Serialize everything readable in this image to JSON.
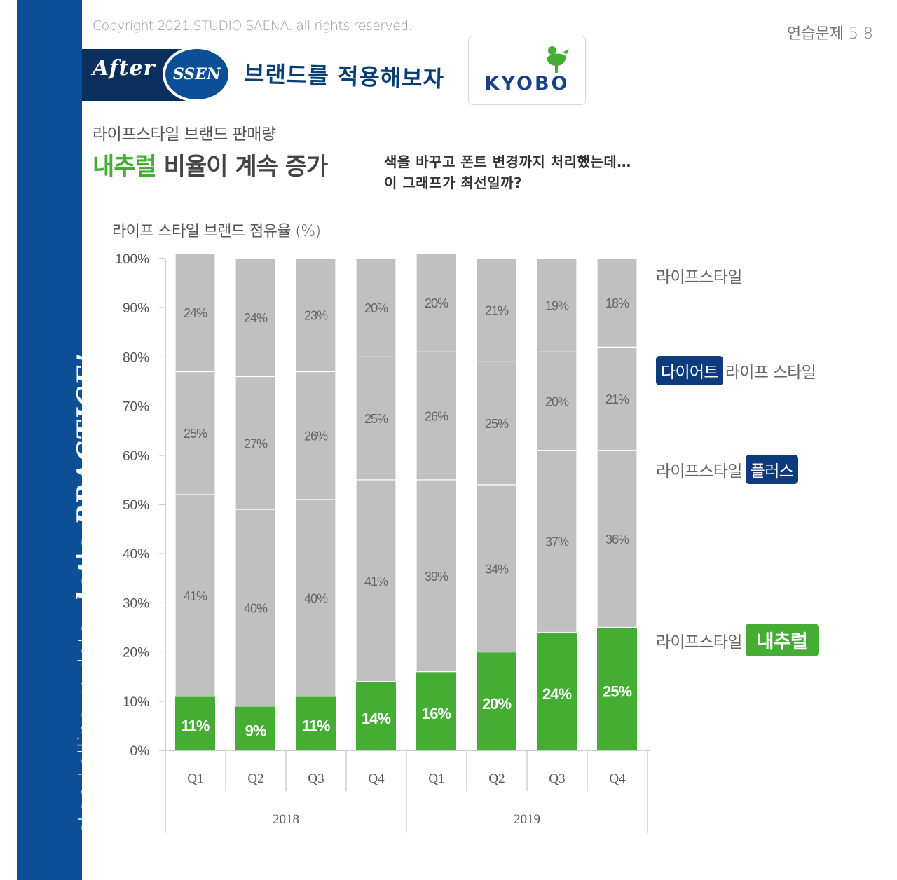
{
  "sidebar": {
    "storytelling": "storytelling",
    "with": "with",
    "data": "data",
    "lets_practice": "let's PRACTICE!"
  },
  "copyright": "Copyright 2021.STUDIO SAENA. all rights reserved.",
  "exercise_label": "연습문제 5.8",
  "after_label": "After",
  "ssen_label": "SSEN",
  "handwritten_title": "브랜드를 적용해보자",
  "logo": {
    "text": "KYOBO"
  },
  "subtitle": "라이프스타일 브랜드 판매량",
  "headline": {
    "highlight": "내추럴",
    "rest": " 비율이 계속 증가"
  },
  "note": {
    "line1": "색을 바꾸고 폰트 변경까지 처리했는데…",
    "line2": "이 그래프가 최선일까?"
  },
  "chart_title": "라이프 스타일 브랜드 점유율 (%)",
  "legend": [
    {
      "prefix": "라이프스타일",
      "tag": "",
      "suffix": ""
    },
    {
      "prefix": "",
      "tag": "다이어트",
      "suffix": "라이프 스타일"
    },
    {
      "prefix": "라이프스타일",
      "tag": "플러스",
      "suffix": ""
    },
    {
      "prefix": "라이프스타일",
      "tag": "내추럴",
      "suffix": ""
    }
  ],
  "colors": {
    "natural": "#45ac34",
    "gray": "#c0c0c0",
    "navy": "#0d3b7e",
    "sidebar": "#0d4f97"
  },
  "chart_data": {
    "type": "bar",
    "stacked": true,
    "title": "라이프 스타일 브랜드 점유율 (%)",
    "categories": [
      "Q1",
      "Q2",
      "Q3",
      "Q4",
      "Q1",
      "Q2",
      "Q3",
      "Q4"
    ],
    "groups": [
      {
        "label": "2018",
        "span": 4
      },
      {
        "label": "2019",
        "span": 4
      }
    ],
    "yticks": [
      "0%",
      "10%",
      "20%",
      "30%",
      "40%",
      "50%",
      "60%",
      "70%",
      "80%",
      "90%",
      "100%"
    ],
    "ylim": [
      0,
      100
    ],
    "series": [
      {
        "name": "라이프스타일 내추럴",
        "values": [
          11,
          9,
          11,
          14,
          16,
          20,
          24,
          25
        ],
        "labels": [
          "11%",
          "9%",
          "11%",
          "14%",
          "16%",
          "20%",
          "24%",
          "25%"
        ]
      },
      {
        "name": "라이프스타일 플러스",
        "values": [
          41,
          40,
          40,
          41,
          39,
          34,
          37,
          36
        ],
        "labels": [
          "41%",
          "40%",
          "40%",
          "41%",
          "39%",
          "34%",
          "37%",
          "36%"
        ]
      },
      {
        "name": "다이어트 라이프 스타일",
        "values": [
          25,
          27,
          26,
          25,
          26,
          25,
          20,
          21
        ],
        "labels": [
          "25%",
          "27%",
          "26%",
          "25%",
          "26%",
          "25%",
          "20%",
          "21%"
        ]
      },
      {
        "name": "라이프스타일",
        "values": [
          24,
          24,
          23,
          20,
          20,
          21,
          19,
          18
        ],
        "labels": [
          "24%",
          "24%",
          "23%",
          "20%",
          "20%",
          "21%",
          "19%",
          "18%"
        ]
      }
    ]
  }
}
